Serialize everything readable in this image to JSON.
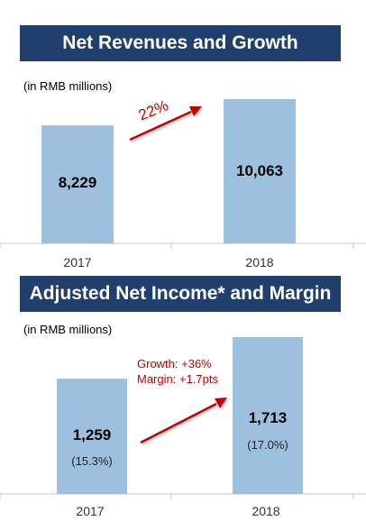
{
  "chart_data": [
    {
      "type": "bar",
      "title": "Net Revenues and Growth",
      "unit_note": "(in RMB millions)",
      "categories": [
        "2017",
        "2018"
      ],
      "values": [
        8229,
        10063
      ],
      "value_labels": [
        "8,229",
        "10,063"
      ],
      "annotations": [
        "22%"
      ],
      "colors": {
        "bar": "#9dc0de",
        "banner": "#213f6c",
        "annotation": "#c00000"
      }
    },
    {
      "type": "bar",
      "title": "Adjusted Net Income* and Margin",
      "unit_note": "(in RMB millions)",
      "categories": [
        "2017",
        "2018"
      ],
      "values": [
        1259,
        1713
      ],
      "value_labels": [
        "1,259",
        "1,713"
      ],
      "margins": [
        "(15.3%)",
        "(17.0%)"
      ],
      "margin_values": [
        15.3,
        17.0
      ],
      "annotations": [
        "Growth: +36%",
        "Margin: +1.7pts"
      ],
      "colors": {
        "bar": "#9dc0de",
        "banner": "#213f6c",
        "annotation": "#c00000"
      }
    }
  ]
}
